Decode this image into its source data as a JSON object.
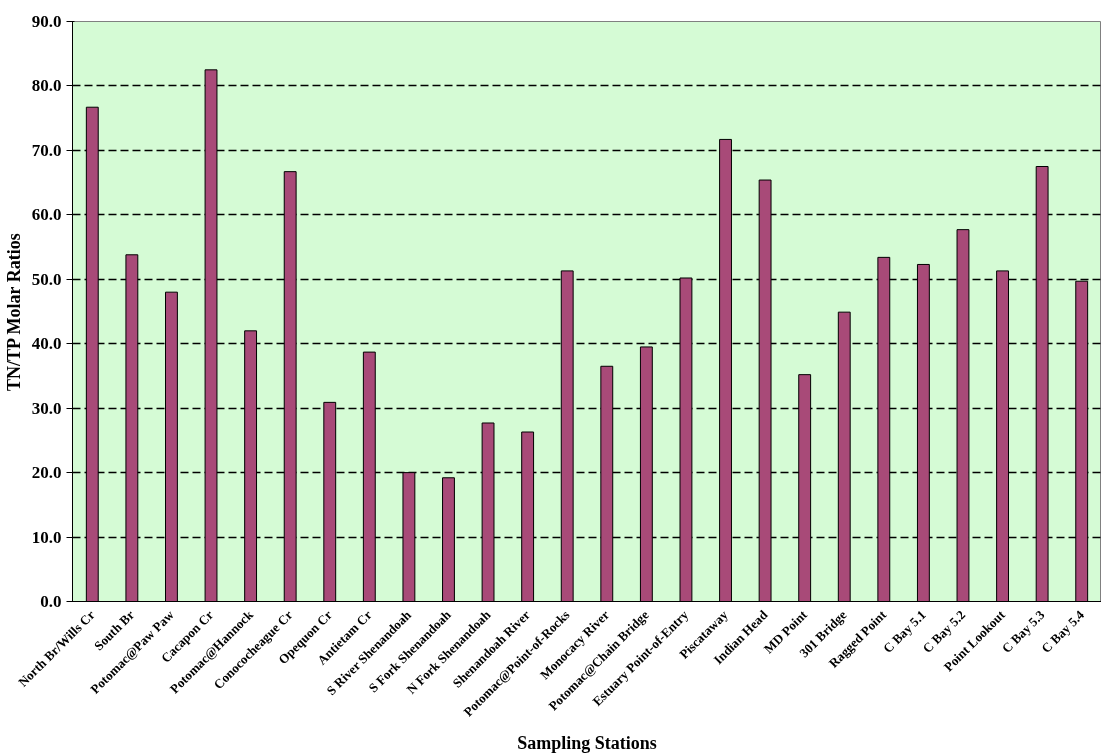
{
  "chart_data": {
    "type": "bar",
    "categories": [
      "North Br/Wills Cr",
      "South Br",
      "Potomac@Paw Paw",
      "Cacapon Cr",
      "Potomac@Hannock",
      "Conococheague Cr",
      "Opequon Cr",
      "Antietam Cr",
      "S River Shenandoah",
      "S Fork Shenandoah",
      "N Fork Shenandoah",
      "Shenandoah River",
      "Potomac@Point-of-Rocks",
      "Monocacy River",
      "Potomac@Chain Bridge",
      "Estuary Point-of-Entry",
      "Piscataway",
      "Indian Head",
      "MD Point",
      "301 Bridge",
      "Ragged Point",
      "C Bay 5.1",
      "C Bay 5.2",
      "Point Lookout",
      "C Bay 5.3",
      "C Bay 5.4"
    ],
    "values": [
      76.7,
      53.8,
      48.0,
      82.5,
      42.0,
      66.7,
      30.9,
      38.7,
      20.0,
      19.2,
      27.7,
      26.3,
      51.3,
      36.5,
      39.5,
      50.2,
      71.7,
      65.4,
      35.2,
      44.9,
      53.4,
      52.3,
      57.7,
      51.3,
      67.5,
      49.7
    ],
    "color": "#a84a78",
    "xlabel": "Sampling Stations",
    "ylabel": "TN/TP Molar Ratios",
    "ylim": [
      0,
      90
    ],
    "yticks": [
      {
        "value": 0,
        "label": "0.0"
      },
      {
        "value": 10,
        "label": "10.0"
      },
      {
        "value": 20,
        "label": "20.0"
      },
      {
        "value": 30,
        "label": "30.0"
      },
      {
        "value": 40,
        "label": "40.0"
      },
      {
        "value": 50,
        "label": "50.0"
      },
      {
        "value": 60,
        "label": "60.0"
      },
      {
        "value": 70,
        "label": "70.0"
      },
      {
        "value": 80,
        "label": "80.0"
      },
      {
        "value": 90,
        "label": "90.0"
      }
    ],
    "grid": "y"
  }
}
